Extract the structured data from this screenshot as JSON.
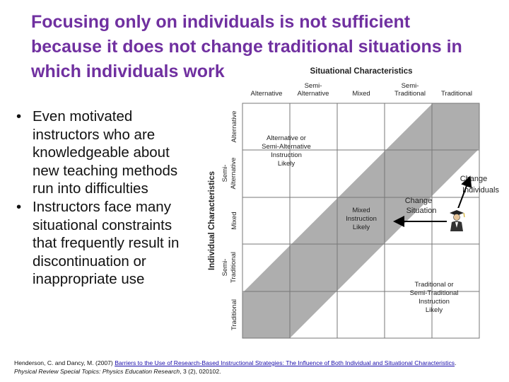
{
  "slide": {
    "title_lines": [
      "Focusing only on individuals is not sufficient",
      "because it does not change traditional situations in",
      "which individuals work"
    ],
    "bullets": [
      "Even motivated instructors who are knowledgeable about new teaching methods run into difficulties",
      "Instructors face many situational constraints that frequently result in discontinuation or inappropriate use"
    ]
  },
  "figure": {
    "top_axis_title": "Situational Characteristics",
    "top_columns": [
      [
        "Alternative"
      ],
      [
        "Semi-",
        "Alternative"
      ],
      [
        "Mixed"
      ],
      [
        "Semi-",
        "Traditional"
      ],
      [
        "Traditional"
      ]
    ],
    "left_axis_title": "Individual Characteristics",
    "left_rows": [
      [
        "Semi-",
        "Alternative"
      ],
      [
        "Mixed"
      ],
      [
        "Semi-",
        "Traditional"
      ],
      [
        "Traditional"
      ]
    ],
    "left_rows_top": [
      "Alternative"
    ],
    "region_labels": {
      "upper": [
        "Alternative or",
        "Semi-Alternative",
        "Instruction",
        "Likely"
      ],
      "middle": [
        "Mixed",
        "Instruction",
        "Likely"
      ],
      "lower": [
        "Traditional or",
        "Semi-Traditional",
        "Instruction",
        "Likely"
      ]
    },
    "annotations": {
      "change_situation": [
        "Change",
        "Situation"
      ],
      "change_individuals": [
        "Change",
        "Individuals"
      ]
    },
    "colors": {
      "band": "#aeaeae",
      "grid": "#777777",
      "title": "#7030a0"
    }
  },
  "citation": {
    "authors": "Henderson, C. and Dancy, M. (2007)",
    "article_title": "Barriers to the Use of Research-Based Instructional Strategies: The Influence of Both Individual and Situational Characteristics",
    "journal": "Physical Review Special Topics: Physics Education Research",
    "volume_info": ", 3 (2), 020102."
  }
}
